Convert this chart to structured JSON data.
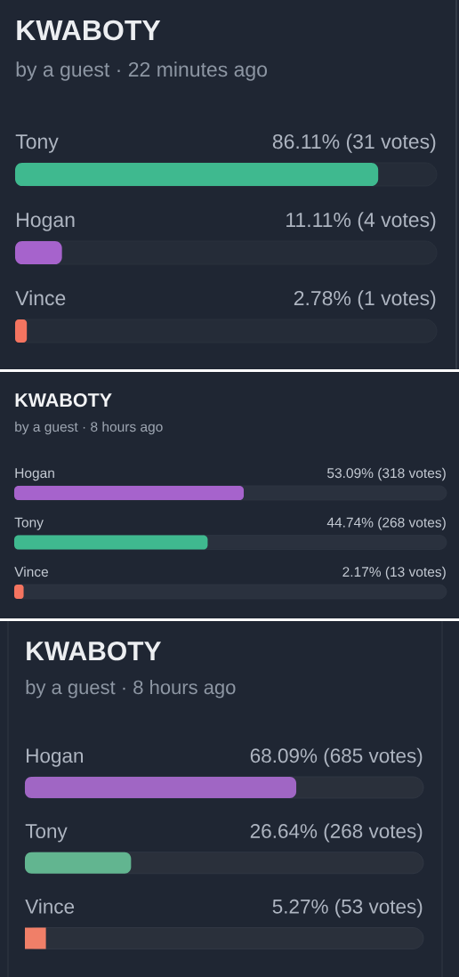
{
  "chart_data": [
    {
      "type": "bar",
      "orientation": "horizontal",
      "title": "KWABOTY",
      "subtitle": "by a guest · 22 minutes ago",
      "categories": [
        "Tony",
        "Hogan",
        "Vince"
      ],
      "values": [
        86.11,
        11.11,
        2.78
      ],
      "colors": [
        "#3fb98f",
        "#a663cc",
        "#f47460"
      ],
      "value_labels": [
        "86.11% (31 votes)",
        "11.11% (4 votes)",
        "2.78% (1 votes)"
      ],
      "xlim": [
        0,
        100
      ],
      "tick_labels": "y"
    },
    {
      "type": "bar",
      "orientation": "horizontal",
      "title": "KWABOTY",
      "subtitle": "by a guest · 8 hours ago",
      "categories": [
        "Hogan",
        "Tony",
        "Vince"
      ],
      "values": [
        53.09,
        44.74,
        2.17
      ],
      "colors": [
        "#a663cc",
        "#3fb98f",
        "#f47460"
      ],
      "value_labels": [
        "53.09% (318 votes)",
        "44.74% (268 votes)",
        "2.17% (13 votes)"
      ],
      "xlim": [
        0,
        100
      ],
      "tick_labels": "y"
    },
    {
      "type": "bar",
      "orientation": "horizontal",
      "title": "KWABOTY",
      "subtitle": "by a guest · 8 hours ago",
      "categories": [
        "Hogan",
        "Tony",
        "Vince"
      ],
      "values": [
        68.09,
        26.64,
        5.27
      ],
      "colors": [
        "#a066c4",
        "#62b590",
        "#f07f68"
      ],
      "value_labels": [
        "68.09% (685 votes)",
        "26.64% (268 votes)",
        "5.27% (53 votes)"
      ],
      "xlim": [
        0,
        100
      ],
      "tick_labels": "y"
    }
  ]
}
